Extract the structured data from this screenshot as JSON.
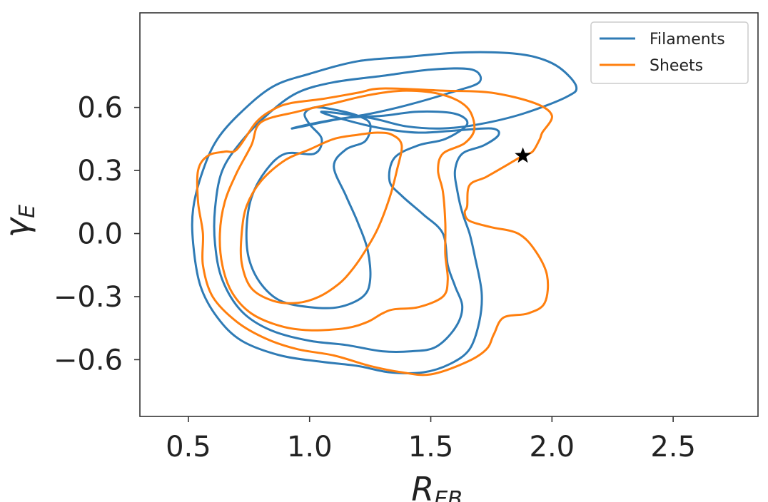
{
  "chart_data": {
    "type": "line",
    "xlabel": "R_EB",
    "ylabel": "γ_E",
    "xlim": [
      0.3,
      2.85
    ],
    "ylim": [
      -0.87,
      1.05
    ],
    "xticks": [
      0.5,
      1.0,
      1.5,
      2.0,
      2.5
    ],
    "xtick_labels": [
      "0.5",
      "1.0",
      "1.5",
      "2.0",
      "2.5"
    ],
    "yticks": [
      0.6,
      0.3,
      0.0,
      -0.3,
      -0.6
    ],
    "ytick_labels": [
      "0.6",
      "0.3",
      "0.0",
      "−0.3",
      "−0.6"
    ],
    "grid": false,
    "legend_position": "top-right",
    "colors": {
      "Filaments": "#2f7bb5",
      "Sheets": "#ff7f0e",
      "marker": "#000000"
    },
    "series": [
      {
        "name": "Filaments",
        "contours": [
          [
            [
              1.05,
              0.58
            ],
            [
              1.25,
              0.55
            ],
            [
              1.4,
              0.51
            ],
            [
              1.55,
              0.5
            ],
            [
              1.7,
              0.52
            ],
            [
              1.88,
              0.57
            ],
            [
              2.06,
              0.65
            ],
            [
              2.1,
              0.7
            ],
            [
              2.03,
              0.79
            ],
            [
              1.93,
              0.84
            ],
            [
              1.8,
              0.86
            ],
            [
              1.6,
              0.86
            ],
            [
              1.4,
              0.84
            ],
            [
              1.2,
              0.82
            ],
            [
              1.0,
              0.76
            ],
            [
              0.85,
              0.7
            ],
            [
              0.72,
              0.58
            ],
            [
              0.62,
              0.45
            ],
            [
              0.56,
              0.3
            ],
            [
              0.52,
              0.12
            ],
            [
              0.52,
              -0.05
            ],
            [
              0.55,
              -0.25
            ],
            [
              0.62,
              -0.4
            ],
            [
              0.72,
              -0.51
            ],
            [
              0.88,
              -0.58
            ],
            [
              1.05,
              -0.61
            ],
            [
              1.2,
              -0.63
            ],
            [
              1.33,
              -0.66
            ],
            [
              1.47,
              -0.66
            ],
            [
              1.58,
              -0.62
            ],
            [
              1.66,
              -0.55
            ],
            [
              1.7,
              -0.42
            ],
            [
              1.71,
              -0.28
            ],
            [
              1.68,
              -0.1
            ],
            [
              1.66,
              0.0
            ],
            [
              1.63,
              0.1
            ],
            [
              1.61,
              0.2
            ],
            [
              1.6,
              0.3
            ],
            [
              1.63,
              0.38
            ],
            [
              1.72,
              0.42
            ],
            [
              1.78,
              0.47
            ],
            [
              1.75,
              0.5
            ],
            [
              1.6,
              0.49
            ],
            [
              1.45,
              0.48
            ],
            [
              1.3,
              0.5
            ],
            [
              1.15,
              0.54
            ],
            [
              1.05,
              0.58
            ]
          ],
          [
            [
              0.93,
              0.5
            ],
            [
              1.1,
              0.54
            ],
            [
              1.25,
              0.57
            ],
            [
              1.4,
              0.61
            ],
            [
              1.58,
              0.67
            ],
            [
              1.7,
              0.72
            ],
            [
              1.67,
              0.78
            ],
            [
              1.5,
              0.78
            ],
            [
              1.3,
              0.75
            ],
            [
              1.1,
              0.72
            ],
            [
              0.95,
              0.67
            ],
            [
              0.83,
              0.57
            ],
            [
              0.72,
              0.44
            ],
            [
              0.64,
              0.3
            ],
            [
              0.61,
              0.12
            ],
            [
              0.61,
              -0.05
            ],
            [
              0.64,
              -0.22
            ],
            [
              0.72,
              -0.37
            ],
            [
              0.84,
              -0.46
            ],
            [
              1.0,
              -0.51
            ],
            [
              1.15,
              -0.53
            ],
            [
              1.3,
              -0.56
            ],
            [
              1.42,
              -0.56
            ],
            [
              1.52,
              -0.54
            ],
            [
              1.6,
              -0.45
            ],
            [
              1.63,
              -0.35
            ],
            [
              1.6,
              -0.25
            ],
            [
              1.57,
              -0.15
            ],
            [
              1.55,
              0.0
            ],
            [
              1.47,
              0.09
            ],
            [
              1.38,
              0.18
            ],
            [
              1.33,
              0.25
            ],
            [
              1.35,
              0.36
            ],
            [
              1.45,
              0.42
            ],
            [
              1.56,
              0.45
            ],
            [
              1.65,
              0.52
            ],
            [
              1.6,
              0.57
            ],
            [
              1.45,
              0.58
            ],
            [
              1.3,
              0.56
            ],
            [
              1.15,
              0.55
            ],
            [
              1.0,
              0.52
            ],
            [
              0.93,
              0.5
            ]
          ],
          [
            [
              1.02,
              0.38
            ],
            [
              1.05,
              0.45
            ],
            [
              1.0,
              0.52
            ],
            [
              0.98,
              0.57
            ],
            [
              1.02,
              0.6
            ],
            [
              1.1,
              0.59
            ],
            [
              1.2,
              0.56
            ],
            [
              1.25,
              0.52
            ],
            [
              1.23,
              0.44
            ],
            [
              1.15,
              0.4
            ],
            [
              1.1,
              0.32
            ],
            [
              1.15,
              0.18
            ],
            [
              1.2,
              0.05
            ],
            [
              1.24,
              -0.08
            ],
            [
              1.25,
              -0.22
            ],
            [
              1.22,
              -0.3
            ],
            [
              1.12,
              -0.35
            ],
            [
              1.0,
              -0.35
            ],
            [
              0.88,
              -0.32
            ],
            [
              0.8,
              -0.24
            ],
            [
              0.75,
              -0.12
            ],
            [
              0.74,
              0.02
            ],
            [
              0.76,
              0.17
            ],
            [
              0.82,
              0.3
            ],
            [
              0.9,
              0.38
            ],
            [
              1.02,
              0.38
            ]
          ]
        ]
      },
      {
        "name": "Sheets",
        "contours": [
          [
            [
              1.3,
              0.69
            ],
            [
              1.55,
              0.68
            ],
            [
              1.75,
              0.67
            ],
            [
              1.93,
              0.62
            ],
            [
              2.0,
              0.56
            ],
            [
              1.96,
              0.48
            ],
            [
              1.95,
              0.45
            ],
            [
              1.92,
              0.39
            ],
            [
              1.88,
              0.37
            ],
            [
              1.82,
              0.33
            ],
            [
              1.73,
              0.27
            ],
            [
              1.66,
              0.23
            ],
            [
              1.65,
              0.13
            ],
            [
              1.64,
              0.1
            ],
            [
              1.66,
              0.06
            ],
            [
              1.75,
              0.03
            ],
            [
              1.86,
              0.0
            ],
            [
              1.93,
              -0.08
            ],
            [
              1.98,
              -0.2
            ],
            [
              1.97,
              -0.33
            ],
            [
              1.9,
              -0.38
            ],
            [
              1.8,
              -0.4
            ],
            [
              1.76,
              -0.48
            ],
            [
              1.73,
              -0.55
            ],
            [
              1.65,
              -0.61
            ],
            [
              1.5,
              -0.67
            ],
            [
              1.38,
              -0.66
            ],
            [
              1.25,
              -0.63
            ],
            [
              1.1,
              -0.58
            ],
            [
              0.95,
              -0.55
            ],
            [
              0.82,
              -0.5
            ],
            [
              0.7,
              -0.42
            ],
            [
              0.6,
              -0.3
            ],
            [
              0.56,
              -0.15
            ],
            [
              0.56,
              0.0
            ],
            [
              0.54,
              0.15
            ],
            [
              0.54,
              0.3
            ],
            [
              0.58,
              0.37
            ],
            [
              0.65,
              0.39
            ],
            [
              0.7,
              0.4
            ],
            [
              0.78,
              0.53
            ],
            [
              0.85,
              0.59
            ],
            [
              0.92,
              0.62
            ],
            [
              1.05,
              0.64
            ],
            [
              1.2,
              0.67
            ],
            [
              1.3,
              0.69
            ]
          ],
          [
            [
              0.8,
              0.53
            ],
            [
              0.95,
              0.58
            ],
            [
              1.1,
              0.62
            ],
            [
              1.25,
              0.66
            ],
            [
              1.4,
              0.68
            ],
            [
              1.55,
              0.66
            ],
            [
              1.65,
              0.6
            ],
            [
              1.68,
              0.5
            ],
            [
              1.64,
              0.43
            ],
            [
              1.55,
              0.38
            ],
            [
              1.53,
              0.3
            ],
            [
              1.55,
              0.2
            ],
            [
              1.56,
              0.05
            ],
            [
              1.56,
              -0.1
            ],
            [
              1.57,
              -0.22
            ],
            [
              1.55,
              -0.3
            ],
            [
              1.45,
              -0.35
            ],
            [
              1.35,
              -0.36
            ],
            [
              1.3,
              -0.38
            ],
            [
              1.24,
              -0.42
            ],
            [
              1.15,
              -0.45
            ],
            [
              1.0,
              -0.46
            ],
            [
              0.88,
              -0.44
            ],
            [
              0.76,
              -0.38
            ],
            [
              0.68,
              -0.28
            ],
            [
              0.64,
              -0.15
            ],
            [
              0.63,
              0.0
            ],
            [
              0.65,
              0.15
            ],
            [
              0.7,
              0.29
            ],
            [
              0.76,
              0.42
            ],
            [
              0.8,
              0.53
            ]
          ],
          [
            [
              0.8,
              0.25
            ],
            [
              0.9,
              0.35
            ],
            [
              1.0,
              0.4
            ],
            [
              1.1,
              0.45
            ],
            [
              1.2,
              0.47
            ],
            [
              1.28,
              0.48
            ],
            [
              1.34,
              0.47
            ],
            [
              1.38,
              0.42
            ],
            [
              1.36,
              0.3
            ],
            [
              1.33,
              0.17
            ],
            [
              1.28,
              0.02
            ],
            [
              1.22,
              -0.1
            ],
            [
              1.17,
              -0.18
            ],
            [
              1.12,
              -0.24
            ],
            [
              1.04,
              -0.3
            ],
            [
              0.95,
              -0.33
            ],
            [
              0.85,
              -0.32
            ],
            [
              0.76,
              -0.26
            ],
            [
              0.72,
              -0.14
            ],
            [
              0.72,
              0.0
            ],
            [
              0.74,
              0.13
            ],
            [
              0.8,
              0.25
            ]
          ]
        ]
      }
    ],
    "marker": {
      "symbol": "star",
      "x": 1.88,
      "y": 0.37
    }
  }
}
